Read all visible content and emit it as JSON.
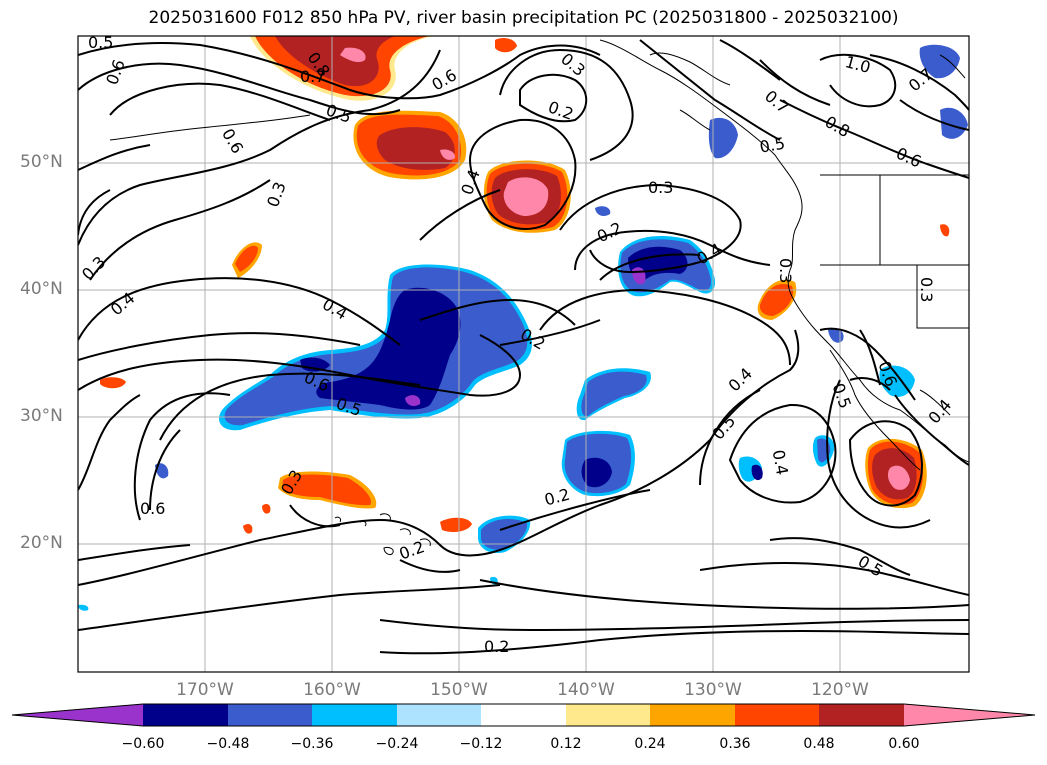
{
  "title": "2025031600 F012 850 hPa PV, river basin precipitation PC (2025031800 - 2025032100)",
  "lat_labels": [
    "50°N",
    "40°N",
    "30°N",
    "20°N"
  ],
  "lon_labels": [
    "170°W",
    "160°W",
    "150°W",
    "140°W",
    "130°W",
    "120°W"
  ],
  "colorbar": {
    "colors": [
      "#9933cc",
      "#00008b",
      "#3a5ccc",
      "#00bfff",
      "#aee3ff",
      "#ffffff",
      "#ffe98c",
      "#ffa500",
      "#ff4500",
      "#b22222",
      "#ff88aa",
      "#ff88aa"
    ],
    "tick_labels": [
      "−0.60",
      "−0.48",
      "−0.36",
      "−0.24",
      "−0.12",
      "0.12",
      "0.24",
      "0.36",
      "0.48",
      "0.60"
    ]
  },
  "contour_labels": [
    "0.5",
    "0.6",
    "0.8",
    "0.7",
    "0.6",
    "0.5",
    "0.6",
    "0.3",
    "0.2",
    "0.3",
    "0.4",
    "0.3",
    "0.2",
    "0.4",
    "0.4",
    "0.2",
    "0.6",
    "0.5",
    "0.4",
    "0.3",
    "1.0",
    "0.7",
    "0.7",
    "0.8",
    "0.6",
    "0.5",
    "0.4",
    "0.5",
    "0.4",
    "0.6",
    "0.5",
    "0.4",
    "0.6",
    "0.3",
    "0.2",
    "0.2",
    "0.2",
    "0.5",
    "0.3",
    "0.3"
  ]
}
